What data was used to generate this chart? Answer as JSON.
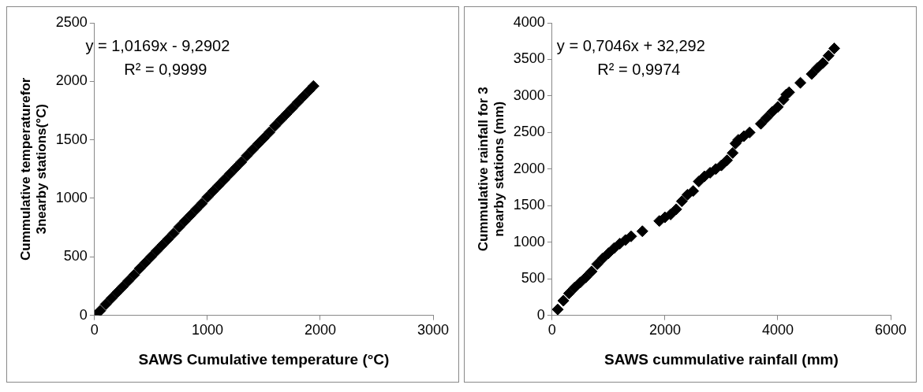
{
  "chart_data": [
    {
      "type": "scatter",
      "xlabel": "SAWS Cumulative temperature (°C)",
      "ylabel": "Cummulative temperaturefor 3nearby stations(°C)",
      "annotations": [
        "y = 1,0169x - 9,2902",
        "R² = 0,9999"
      ],
      "series": [
        {
          "color": "#000000",
          "x": [
            10,
            50,
            100,
            150,
            200,
            250,
            300,
            350,
            400,
            450,
            500,
            550,
            600,
            650,
            700,
            750,
            800,
            850,
            900,
            950,
            1000,
            1050,
            1100,
            1150,
            1200,
            1250,
            1300,
            1350,
            1400,
            1450,
            1500,
            1550,
            1600,
            1650,
            1700,
            1750,
            1800,
            1850,
            1900,
            1940
          ],
          "values": [
            0,
            40,
            95,
            145,
            195,
            245,
            295,
            345,
            400,
            450,
            500,
            550,
            600,
            650,
            700,
            755,
            805,
            855,
            905,
            955,
            1010,
            1060,
            1110,
            1160,
            1210,
            1260,
            1310,
            1365,
            1415,
            1465,
            1515,
            1565,
            1620,
            1670,
            1720,
            1770,
            1820,
            1870,
            1920,
            1960
          ]
        }
      ],
      "xlim": [
        0,
        3000
      ],
      "xticks": [
        0,
        1000,
        2000,
        3000
      ],
      "ylim": [
        0,
        2500
      ],
      "yticks": [
        0,
        500,
        1000,
        1500,
        2000,
        2500
      ],
      "grid": false,
      "legend": false,
      "marker": "diamond"
    },
    {
      "type": "scatter",
      "xlabel": "SAWS cummulative rainfall (mm)",
      "ylabel": "Cummulative rainfall for 3 nearby stations (mm)",
      "annotations": [
        "y = 0,7046x + 32,292",
        "R² = 0,9974"
      ],
      "series": [
        {
          "color": "#000000",
          "x": [
            100,
            200,
            300,
            400,
            500,
            600,
            700,
            800,
            900,
            1000,
            1100,
            1200,
            1300,
            1400,
            1600,
            1900,
            2000,
            2100,
            2200,
            2300,
            2400,
            2500,
            2600,
            2700,
            2800,
            2900,
            3000,
            3100,
            3200,
            3250,
            3300,
            3400,
            3500,
            3700,
            3800,
            3900,
            4000,
            4100,
            4150,
            4200,
            4400,
            4600,
            4700,
            4800,
            4900,
            5000
          ],
          "values": [
            80,
            200,
            300,
            380,
            450,
            520,
            600,
            700,
            780,
            850,
            920,
            980,
            1030,
            1080,
            1150,
            1290,
            1340,
            1380,
            1450,
            1560,
            1650,
            1700,
            1830,
            1900,
            1950,
            2000,
            2050,
            2120,
            2220,
            2350,
            2400,
            2450,
            2500,
            2620,
            2700,
            2780,
            2850,
            2950,
            3020,
            3050,
            3180,
            3300,
            3380,
            3450,
            3550,
            3650
          ]
        }
      ],
      "xlim": [
        0,
        6000
      ],
      "xticks": [
        0,
        2000,
        4000,
        6000
      ],
      "ylim": [
        0,
        4000
      ],
      "yticks": [
        0,
        500,
        1000,
        1500,
        2000,
        2500,
        3000,
        3500,
        4000
      ],
      "grid": false,
      "legend": false,
      "marker": "diamond"
    }
  ]
}
